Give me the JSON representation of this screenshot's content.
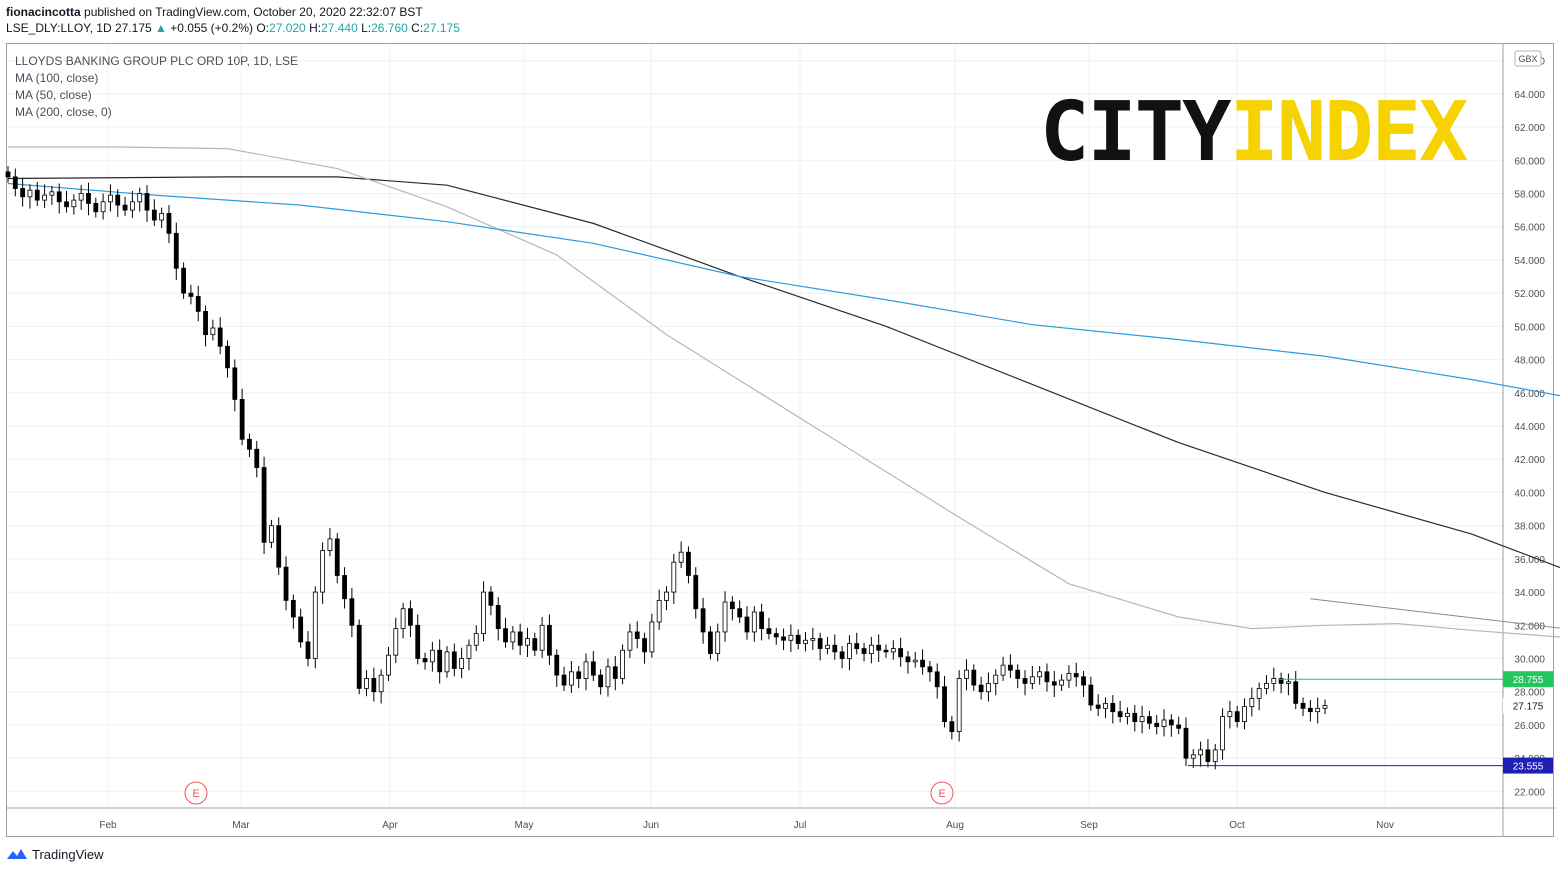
{
  "header": {
    "publisher": "fionacincotta",
    "published_text": "published on TradingView.com, October 20, 2020 22:32:07 BST",
    "symbol_line": "LSE_DLY:LLOY, 1D",
    "last": "27.175",
    "change": "+0.055 (+0.2%)",
    "o_label": "O:",
    "o_value": "27.020",
    "h_label": "H:",
    "h_value": "27.440",
    "l_label": "L:",
    "l_value": "26.760",
    "c_label": "C:",
    "c_value": "27.175"
  },
  "legend": {
    "title": "LLOYDS BANKING GROUP PLC ORD 10P, 1D, LSE",
    "ma1": "MA (100, close)",
    "ma2": "MA (50, close)",
    "ma3": "MA (200, close, 0)"
  },
  "logo": {
    "part1": "CITY",
    "part2": "INDEX",
    "part1_color": "#111111",
    "part2_color": "#f5d200"
  },
  "footer": {
    "brand": "TradingView"
  },
  "chart_data": {
    "type": "candlestick",
    "currency": "GBX",
    "ylim": [
      21,
      67
    ],
    "y_ticks": [
      "22.000",
      "24.000",
      "26.000",
      "28.000",
      "30.000",
      "32.000",
      "34.000",
      "36.000",
      "38.000",
      "40.000",
      "42.000",
      "44.000",
      "46.000",
      "48.000",
      "50.000",
      "52.000",
      "54.000",
      "56.000",
      "58.000",
      "60.000",
      "62.000",
      "64.000",
      "66.000"
    ],
    "x_ticks": [
      "Feb",
      "Mar",
      "Apr",
      "May",
      "Jun",
      "Jul",
      "Aug",
      "Sep",
      "Oct",
      "Nov"
    ],
    "price_labels": [
      {
        "value": 28.755,
        "text": "28.755",
        "color": "#22c55e"
      },
      {
        "value": 27.175,
        "text": "27.175",
        "color": "#ffffff"
      },
      {
        "value": 23.555,
        "text": "23.555",
        "color": "#1f1fb4"
      }
    ],
    "earnings_markers": [
      {
        "date": "Feb 20",
        "label": "E"
      },
      {
        "date": "Jul 30",
        "label": "E"
      }
    ],
    "closes": [
      59.0,
      58.3,
      57.8,
      58.2,
      57.6,
      57.9,
      58.1,
      57.5,
      57.2,
      57.6,
      58.0,
      57.4,
      56.9,
      57.5,
      57.9,
      57.3,
      57.0,
      57.5,
      58.0,
      57.0,
      56.4,
      56.8,
      55.6,
      53.5,
      52.0,
      51.8,
      50.9,
      49.5,
      49.9,
      48.8,
      47.5,
      45.6,
      43.2,
      42.6,
      41.5,
      37.0,
      38.0,
      35.5,
      33.5,
      32.5,
      31.0,
      30.0,
      34.0,
      36.5,
      37.2,
      35.0,
      33.6,
      32.0,
      28.2,
      28.8,
      28.0,
      29.0,
      30.2,
      31.8,
      33.0,
      32.0,
      30.0,
      29.8,
      30.5,
      29.2,
      30.4,
      29.4,
      30.0,
      30.8,
      31.5,
      34.0,
      33.2,
      31.8,
      31.0,
      31.6,
      30.8,
      31.2,
      30.5,
      32.0,
      30.2,
      29.0,
      28.4,
      29.2,
      28.8,
      29.8,
      29.0,
      28.3,
      29.5,
      28.8,
      30.5,
      31.6,
      31.2,
      30.4,
      32.2,
      33.5,
      34.0,
      35.8,
      36.4,
      35.0,
      33.0,
      31.6,
      30.3,
      31.6,
      33.4,
      33.0,
      32.5,
      31.6,
      32.8,
      31.8,
      31.5,
      31.3,
      31.1,
      31.4,
      30.9,
      31.1,
      31.2,
      30.6,
      30.8,
      30.4,
      30.0,
      30.9,
      30.6,
      30.3,
      30.8,
      30.5,
      30.4,
      30.6,
      30.1,
      29.8,
      29.9,
      29.5,
      29.2,
      28.3,
      26.2,
      25.6,
      28.8,
      29.3,
      28.4,
      28.0,
      28.5,
      29.0,
      29.6,
      29.3,
      28.8,
      28.5,
      28.9,
      29.2,
      28.6,
      28.4,
      28.7,
      29.1,
      28.9,
      28.4,
      27.2,
      27.0,
      27.3,
      26.8,
      26.5,
      26.7,
      26.2,
      26.5,
      26.1,
      25.9,
      26.3,
      26.0,
      25.8,
      24.0,
      24.2,
      24.5,
      23.8,
      24.5,
      26.5,
      26.8,
      26.2,
      27.1,
      27.6,
      28.2,
      28.5,
      28.8,
      28.5,
      28.6,
      27.3,
      27.0,
      26.8,
      27.0,
      27.175
    ],
    "series": [
      {
        "name": "MA (100, close)",
        "color": "#2a2a2a",
        "points": [
          [
            0,
            58.9
          ],
          [
            30,
            59.0
          ],
          [
            45,
            59.0
          ],
          [
            60,
            58.5
          ],
          [
            80,
            56.2
          ],
          [
            100,
            53.0
          ],
          [
            120,
            50.0
          ],
          [
            140,
            46.5
          ],
          [
            160,
            43.0
          ],
          [
            180,
            40.0
          ],
          [
            200,
            37.5
          ],
          [
            215,
            35.0
          ],
          [
            225,
            33.5
          ],
          [
            240,
            31.5
          ],
          [
            260,
            30.5
          ],
          [
            280,
            30.2
          ],
          [
            300,
            29.6
          ],
          [
            320,
            29.0
          ],
          [
            330,
            28.9
          ]
        ]
      },
      {
        "name": "MA (50, close)",
        "color": "#b7b7b7",
        "points": [
          [
            0,
            60.8
          ],
          [
            15,
            60.8
          ],
          [
            30,
            60.7
          ],
          [
            45,
            59.5
          ],
          [
            60,
            57.2
          ],
          [
            75,
            54.3
          ],
          [
            90,
            49.5
          ],
          [
            110,
            44.0
          ],
          [
            130,
            38.5
          ],
          [
            145,
            34.5
          ],
          [
            160,
            32.5
          ],
          [
            170,
            31.8
          ],
          [
            180,
            32.0
          ],
          [
            190,
            32.1
          ],
          [
            200,
            31.7
          ],
          [
            215,
            31.2
          ],
          [
            230,
            30.8
          ],
          [
            245,
            29.8
          ],
          [
            260,
            29.5
          ],
          [
            280,
            28.9
          ],
          [
            300,
            27.8
          ],
          [
            315,
            26.8
          ],
          [
            330,
            27.1
          ]
        ]
      },
      {
        "name": "MA (200, close, 0)",
        "color": "#2d9bdc",
        "points": [
          [
            0,
            58.6
          ],
          [
            20,
            57.9
          ],
          [
            40,
            57.3
          ],
          [
            60,
            56.3
          ],
          [
            80,
            55.0
          ],
          [
            100,
            53.0
          ],
          [
            120,
            51.6
          ],
          [
            140,
            50.1
          ],
          [
            160,
            49.2
          ],
          [
            180,
            48.2
          ],
          [
            200,
            46.8
          ],
          [
            220,
            45.2
          ],
          [
            240,
            43.0
          ],
          [
            260,
            41.0
          ],
          [
            280,
            38.6
          ],
          [
            300,
            36.5
          ],
          [
            330,
            34.0
          ]
        ]
      }
    ],
    "trendlines": [
      {
        "from": [
          178,
          33.6
        ],
        "to": [
          330,
          25.6
        ],
        "color": "#8a8a8a"
      },
      {
        "from": [
          0,
          23.0
        ],
        "to": [
          0,
          23.0
        ],
        "color": "#8a8a8a"
      }
    ]
  }
}
